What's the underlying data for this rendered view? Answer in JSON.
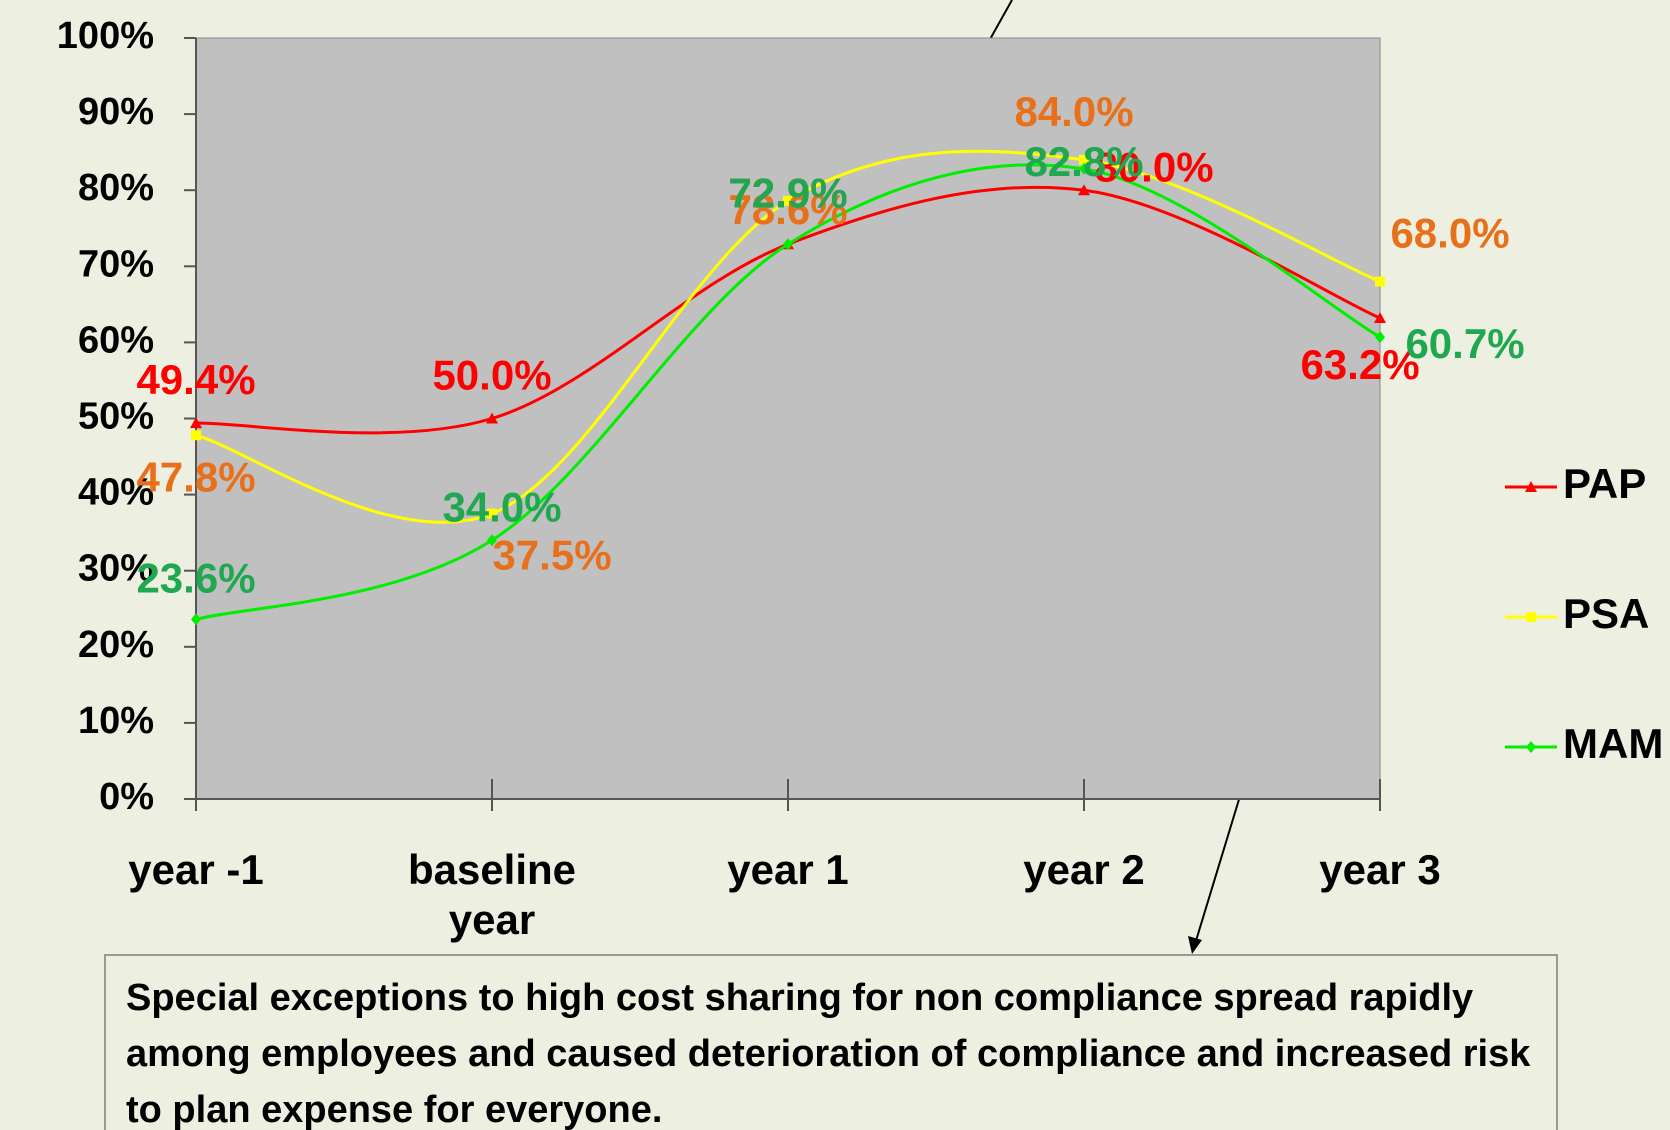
{
  "chart_data": {
    "type": "line",
    "categories": [
      "year -1",
      "baseline year",
      "year 1",
      "year 2",
      "year 3"
    ],
    "series": [
      {
        "name": "PAP",
        "color": "#ff0000",
        "label_color": "#ff0000",
        "marker": "triangle",
        "values": [
          49.4,
          50.0,
          72.9,
          80.0,
          63.2
        ],
        "value_labels": [
          "49.4%",
          "50.0%",
          "72.9%",
          "80.0%",
          "63.2%"
        ]
      },
      {
        "name": "PSA",
        "color": "#ffff00",
        "label_color": "#e8701a",
        "marker": "square",
        "values": [
          47.8,
          37.5,
          78.6,
          84.0,
          68.0
        ],
        "value_labels": [
          "47.8%",
          "37.5%",
          "78.6%",
          "84.0%",
          "68.0%"
        ]
      },
      {
        "name": "MAM",
        "color": "#00ee00",
        "label_color": "#1fa84f",
        "marker": "diamond",
        "values": [
          23.6,
          34.0,
          72.9,
          82.8,
          60.7
        ],
        "value_labels": [
          "23.6%",
          "34.0%",
          "72.9%",
          "82.8%",
          "60.7%"
        ]
      }
    ],
    "ylim": [
      0,
      100
    ],
    "yticks": [
      {
        "value": 0,
        "label": "0%"
      },
      {
        "value": 10,
        "label": "10%"
      },
      {
        "value": 20,
        "label": "20%"
      },
      {
        "value": 30,
        "label": "30%"
      },
      {
        "value": 40,
        "label": "40%"
      },
      {
        "value": 50,
        "label": "50%"
      },
      {
        "value": 60,
        "label": "60%"
      },
      {
        "value": 70,
        "label": "70%"
      },
      {
        "value": 80,
        "label": "80%"
      },
      {
        "value": 90,
        "label": "90%"
      },
      {
        "value": 100,
        "label": "100%"
      }
    ],
    "plot_background": "#c0c0c0",
    "annotation": "Special exceptions to high cost sharing for non compliance spread rapidly among employees and caused deterioration of compliance and increased risk to plan expense for everyone."
  }
}
